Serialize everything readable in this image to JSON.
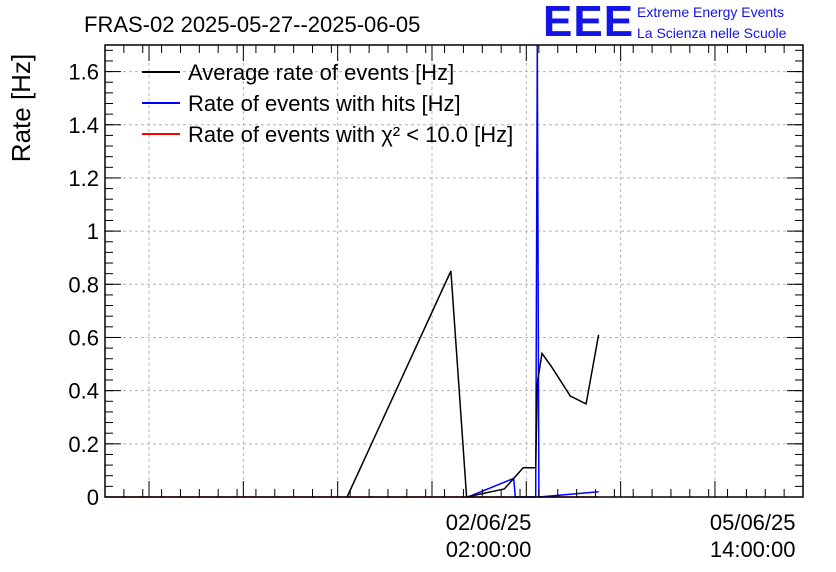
{
  "title": "FRAS-02 2025-05-27--2025-06-05",
  "logo": {
    "mark": "EEE",
    "line1": "Extreme Energy Events",
    "line2": "La Scienza nelle Scuole"
  },
  "chart_data": {
    "type": "line",
    "title": "FRAS-02 2025-05-27--2025-06-05",
    "ylabel": "Rate [Hz]",
    "xlabel": "",
    "xlim": [
      "2025-05-28 00:00",
      "2025-06-06 06:00"
    ],
    "ylim": [
      0,
      1.7
    ],
    "grid": true,
    "legend_position": "top-left",
    "yticks": [
      {
        "value": 0,
        "label": "0"
      },
      {
        "value": 0.2,
        "label": "0.2"
      },
      {
        "value": 0.4,
        "label": "0.4"
      },
      {
        "value": 0.6,
        "label": "0.6"
      },
      {
        "value": 0.8,
        "label": "0.8"
      },
      {
        "value": 1.0,
        "label": "1"
      },
      {
        "value": 1.2,
        "label": "1.2"
      },
      {
        "value": 1.4,
        "label": "1.4"
      },
      {
        "value": 1.6,
        "label": "1.6"
      }
    ],
    "xticks": [
      {
        "x": "2025-06-02 02:00",
        "line1": "02/06/25",
        "line2": "02:00:00"
      },
      {
        "x": "2025-06-05 14:00",
        "line1": "05/06/25",
        "line2": "14:00:00"
      }
    ],
    "series": [
      {
        "name": "Average rate of events [Hz]",
        "color": "#000000",
        "points": [
          [
            "2025-05-31 05:00",
            0.0
          ],
          [
            "2025-06-01 14:00",
            0.85
          ],
          [
            "2025-06-01 19:00",
            0.0
          ],
          [
            "2025-06-02 07:00",
            0.03
          ],
          [
            "2025-06-02 13:00",
            0.11
          ],
          [
            "2025-06-02 17:00",
            0.11
          ],
          [
            "2025-06-02 17:30",
            0.43
          ],
          [
            "2025-06-02 19:00",
            0.54
          ],
          [
            "2025-06-02 22:00",
            0.49
          ],
          [
            "2025-06-03 04:00",
            0.38
          ],
          [
            "2025-06-03 09:00",
            0.35
          ],
          [
            "2025-06-03 13:00",
            0.61
          ]
        ]
      },
      {
        "name": "Rate of events with hits [Hz]",
        "color": "#0000ff",
        "points": [
          [
            "2025-06-01 19:00",
            0.0
          ],
          [
            "2025-06-01 19:30",
            0.0
          ],
          [
            "2025-06-02 10:00",
            0.07
          ],
          [
            "2025-06-02 10:30",
            0.0
          ],
          [
            "2025-06-02 17:00",
            0.0
          ],
          [
            "2025-06-02 17:30",
            1.7
          ],
          [
            "2025-06-02 18:00",
            0.0
          ],
          [
            "2025-06-03 13:00",
            0.02
          ]
        ]
      },
      {
        "name": "Rate of events with χ² < 10.0 [Hz]",
        "color": "#ff0000",
        "points": [
          [
            "2025-05-28 00:00",
            0.0
          ],
          [
            "2025-06-03 13:00",
            0.0
          ]
        ]
      }
    ]
  }
}
